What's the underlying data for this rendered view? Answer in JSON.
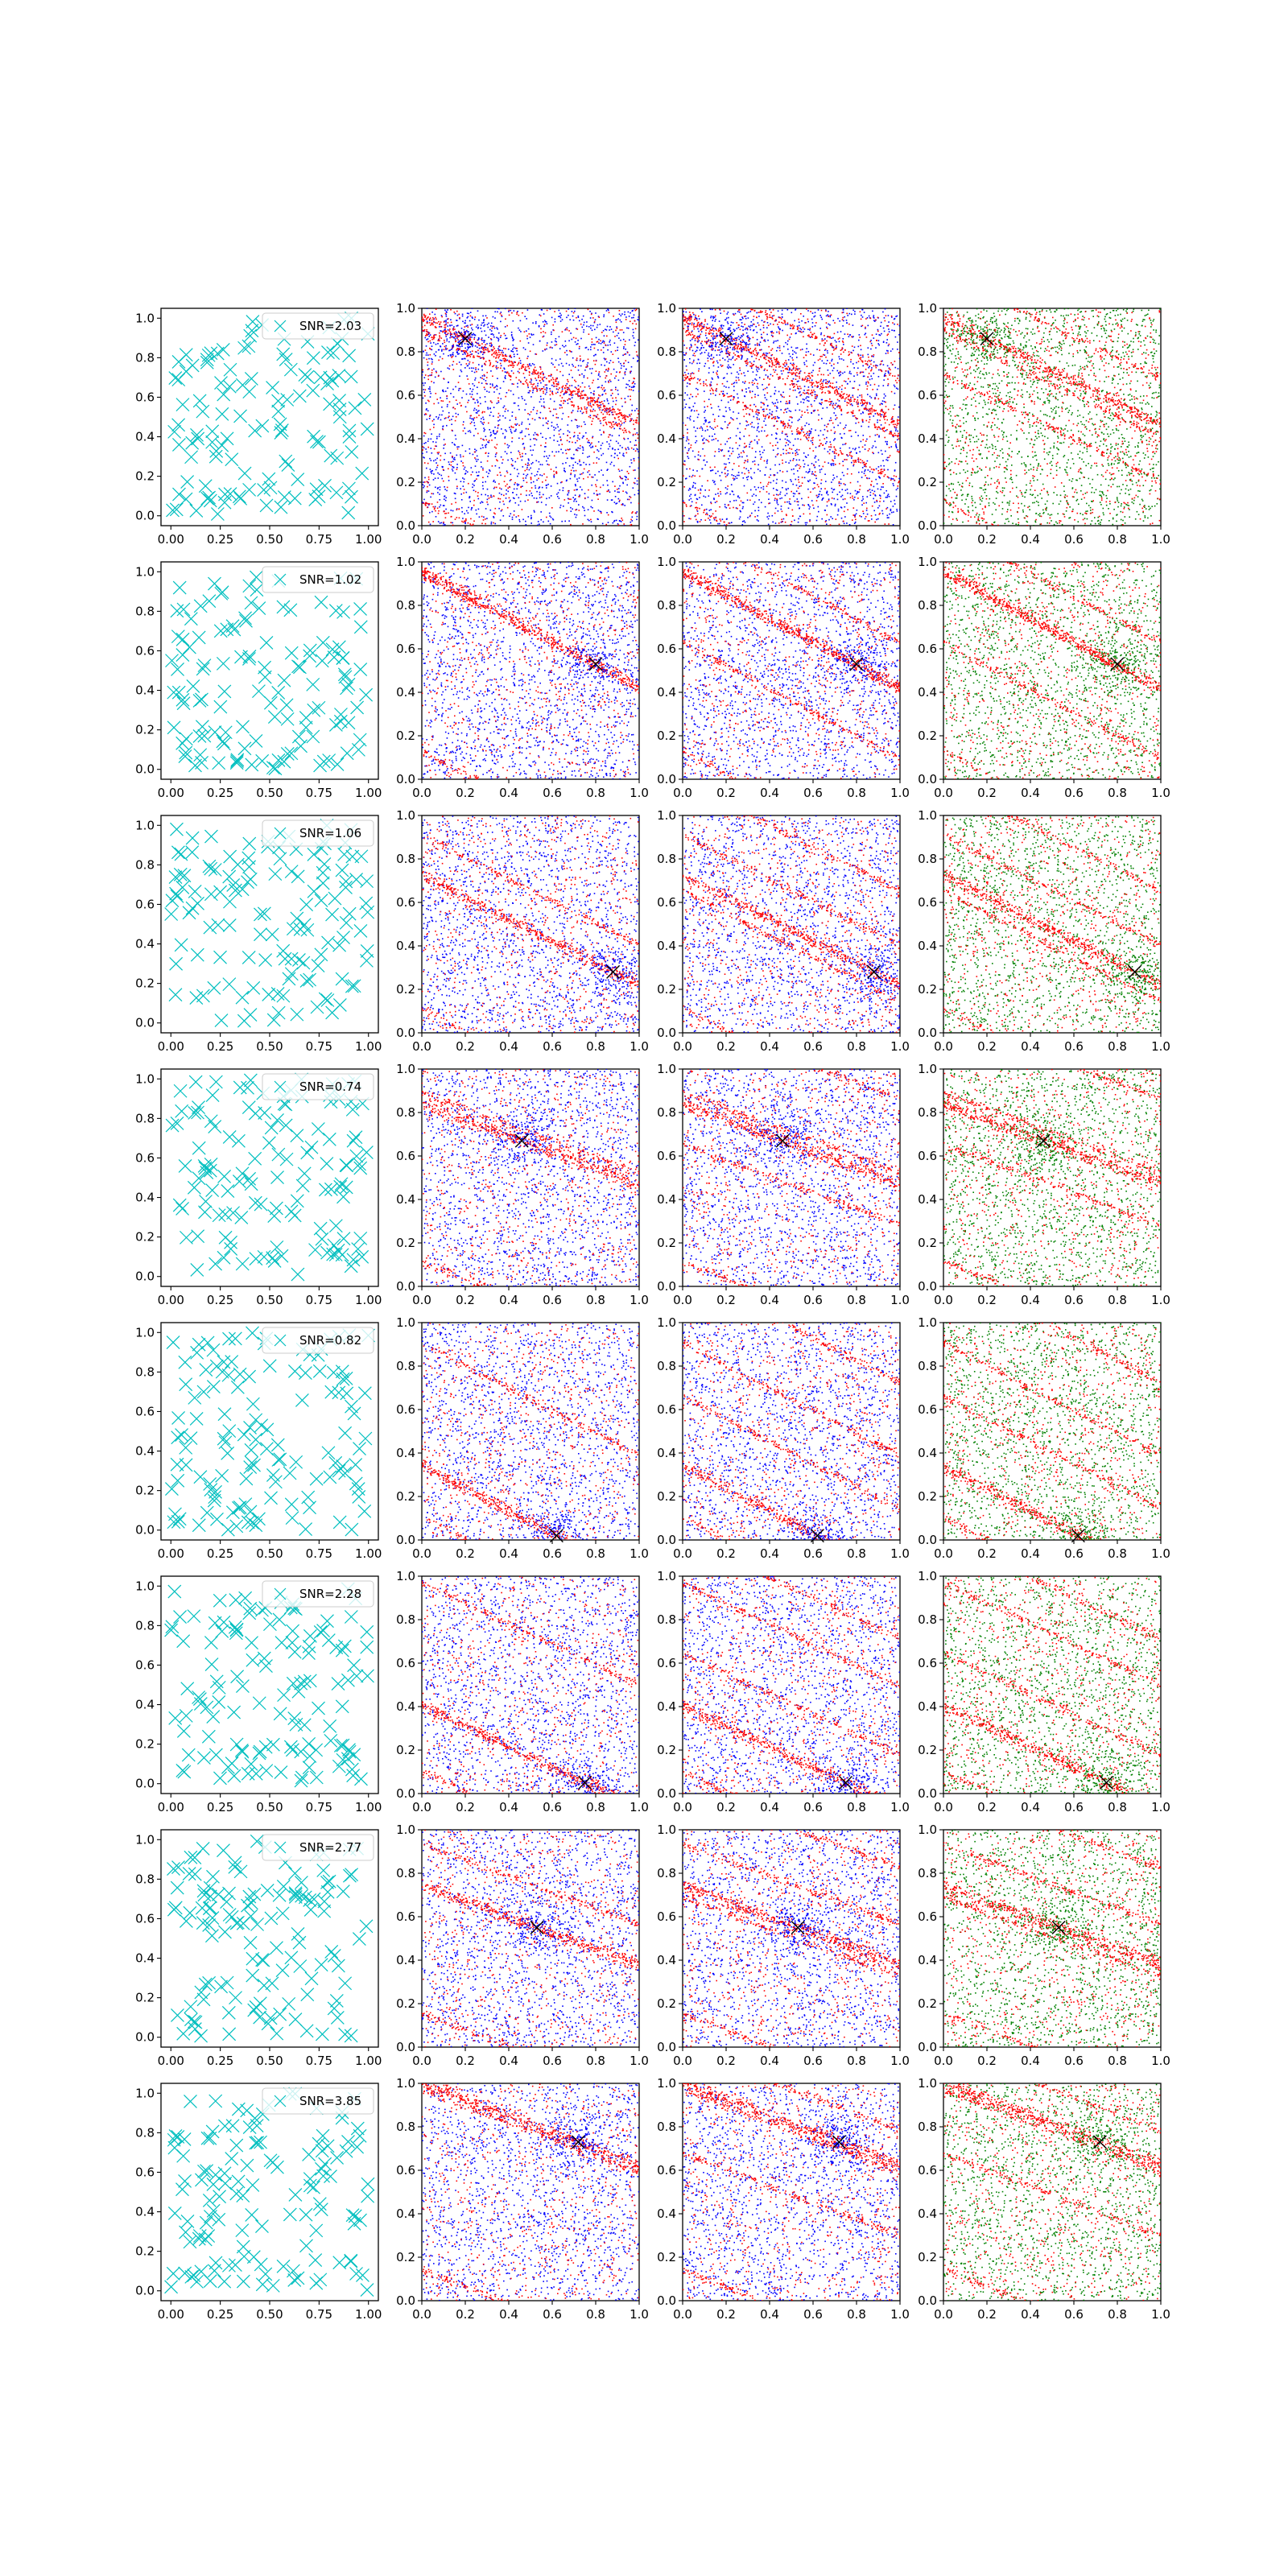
{
  "colors": {
    "cross": "#00bfbf",
    "blue": "#0000ff",
    "red": "#ff0000",
    "green": "#008000",
    "target": "#000000",
    "axes": "#000000",
    "legend_border": "#cccccc"
  },
  "chart_data": [
    {
      "panel": "row1-col1",
      "type": "scatter",
      "marker": "x",
      "legend": "SNR=2.03",
      "legend_placement": "upper right",
      "n_points": 130,
      "xlim": [
        -0.05,
        1.05
      ],
      "ylim": [
        -0.05,
        1.05
      ],
      "xticks": [
        "0.00",
        "0.25",
        "0.50",
        "0.75",
        "1.00"
      ],
      "yticks": [
        "0.0",
        "0.2",
        "0.4",
        "0.6",
        "0.8",
        "1.0"
      ]
    },
    {
      "panel": "row1-cols2-4",
      "type": "scatter",
      "xlim": [
        0,
        1
      ],
      "ylim": [
        0,
        1
      ],
      "xticks": [
        "0.0",
        "0.2",
        "0.4",
        "0.6",
        "0.8",
        "1.0"
      ],
      "yticks": [
        "0.0",
        "0.2",
        "0.4",
        "0.6",
        "0.8",
        "1.0"
      ],
      "target": [
        0.2,
        0.86
      ],
      "subpanel_colors": [
        [
          "red",
          "blue"
        ],
        [
          "red",
          "blue"
        ],
        [
          "red",
          "green"
        ]
      ]
    },
    {
      "panel": "row2-col1",
      "type": "scatter",
      "marker": "x",
      "legend": "SNR=1.02",
      "legend_placement": "upper right",
      "n_points": 130,
      "xlim": [
        -0.05,
        1.05
      ],
      "ylim": [
        -0.05,
        1.05
      ],
      "xticks": [
        "0.00",
        "0.25",
        "0.50",
        "0.75",
        "1.00"
      ],
      "yticks": [
        "0.0",
        "0.2",
        "0.4",
        "0.6",
        "0.8",
        "1.0"
      ]
    },
    {
      "panel": "row2-cols2-4",
      "type": "scatter",
      "xlim": [
        0,
        1
      ],
      "ylim": [
        0,
        1
      ],
      "xticks": [
        "0.0",
        "0.2",
        "0.4",
        "0.6",
        "0.8",
        "1.0"
      ],
      "yticks": [
        "0.0",
        "0.2",
        "0.4",
        "0.6",
        "0.8",
        "1.0"
      ],
      "target": [
        0.8,
        0.53
      ],
      "subpanel_colors": [
        [
          "red",
          "blue"
        ],
        [
          "red",
          "blue"
        ],
        [
          "red",
          "green"
        ]
      ]
    },
    {
      "panel": "row3-col1",
      "type": "scatter",
      "marker": "x",
      "legend": "SNR=1.06",
      "legend_placement": "upper right",
      "n_points": 130,
      "xlim": [
        -0.05,
        1.05
      ],
      "ylim": [
        -0.05,
        1.05
      ],
      "xticks": [
        "0.00",
        "0.25",
        "0.50",
        "0.75",
        "1.00"
      ],
      "yticks": [
        "0.0",
        "0.2",
        "0.4",
        "0.6",
        "0.8",
        "1.0"
      ]
    },
    {
      "panel": "row3-cols2-4",
      "type": "scatter",
      "xlim": [
        0,
        1
      ],
      "ylim": [
        0,
        1
      ],
      "xticks": [
        "0.0",
        "0.2",
        "0.4",
        "0.6",
        "0.8",
        "1.0"
      ],
      "yticks": [
        "0.0",
        "0.2",
        "0.4",
        "0.6",
        "0.8",
        "1.0"
      ],
      "target": [
        0.88,
        0.28
      ],
      "subpanel_colors": [
        [
          "red",
          "blue"
        ],
        [
          "red",
          "blue"
        ],
        [
          "red",
          "green"
        ]
      ]
    },
    {
      "panel": "row4-col1",
      "type": "scatter",
      "marker": "x",
      "legend": "SNR=0.74",
      "legend_placement": "upper right",
      "n_points": 130,
      "xlim": [
        -0.05,
        1.05
      ],
      "ylim": [
        -0.05,
        1.05
      ],
      "xticks": [
        "0.00",
        "0.25",
        "0.50",
        "0.75",
        "1.00"
      ],
      "yticks": [
        "0.0",
        "0.2",
        "0.4",
        "0.6",
        "0.8",
        "1.0"
      ]
    },
    {
      "panel": "row4-cols2-4",
      "type": "scatter",
      "xlim": [
        0,
        1
      ],
      "ylim": [
        0,
        1
      ],
      "xticks": [
        "0.0",
        "0.2",
        "0.4",
        "0.6",
        "0.8",
        "1.0"
      ],
      "yticks": [
        "0.0",
        "0.2",
        "0.4",
        "0.6",
        "0.8",
        "1.0"
      ],
      "target": [
        0.46,
        0.67
      ],
      "subpanel_colors": [
        [
          "red",
          "blue"
        ],
        [
          "red",
          "blue"
        ],
        [
          "red",
          "green"
        ]
      ]
    },
    {
      "panel": "row5-col1",
      "type": "scatter",
      "marker": "x",
      "legend": "SNR=0.82",
      "legend_placement": "upper right",
      "n_points": 130,
      "xlim": [
        -0.05,
        1.05
      ],
      "ylim": [
        -0.05,
        1.05
      ],
      "xticks": [
        "0.00",
        "0.25",
        "0.50",
        "0.75",
        "1.00"
      ],
      "yticks": [
        "0.0",
        "0.2",
        "0.4",
        "0.6",
        "0.8",
        "1.0"
      ]
    },
    {
      "panel": "row5-cols2-4",
      "type": "scatter",
      "xlim": [
        0,
        1
      ],
      "ylim": [
        0,
        1
      ],
      "xticks": [
        "0.0",
        "0.2",
        "0.4",
        "0.6",
        "0.8",
        "1.0"
      ],
      "yticks": [
        "0.0",
        "0.2",
        "0.4",
        "0.6",
        "0.8",
        "1.0"
      ],
      "target": [
        0.62,
        0.02
      ],
      "subpanel_colors": [
        [
          "red",
          "blue"
        ],
        [
          "red",
          "blue"
        ],
        [
          "red",
          "green"
        ]
      ]
    },
    {
      "panel": "row6-col1",
      "type": "scatter",
      "marker": "x",
      "legend": "SNR=2.28",
      "legend_placement": "upper right",
      "n_points": 130,
      "xlim": [
        -0.05,
        1.05
      ],
      "ylim": [
        -0.05,
        1.05
      ],
      "xticks": [
        "0.00",
        "0.25",
        "0.50",
        "0.75",
        "1.00"
      ],
      "yticks": [
        "0.0",
        "0.2",
        "0.4",
        "0.6",
        "0.8",
        "1.0"
      ]
    },
    {
      "panel": "row6-cols2-4",
      "type": "scatter",
      "xlim": [
        0,
        1
      ],
      "ylim": [
        0,
        1
      ],
      "xticks": [
        "0.0",
        "0.2",
        "0.4",
        "0.6",
        "0.8",
        "1.0"
      ],
      "yticks": [
        "0.0",
        "0.2",
        "0.4",
        "0.6",
        "0.8",
        "1.0"
      ],
      "target": [
        0.75,
        0.05
      ],
      "subpanel_colors": [
        [
          "red",
          "blue"
        ],
        [
          "red",
          "blue"
        ],
        [
          "red",
          "green"
        ]
      ]
    },
    {
      "panel": "row7-col1",
      "type": "scatter",
      "marker": "x",
      "legend": "SNR=2.77",
      "legend_placement": "upper right",
      "n_points": 130,
      "xlim": [
        -0.05,
        1.05
      ],
      "ylim": [
        -0.05,
        1.05
      ],
      "xticks": [
        "0.00",
        "0.25",
        "0.50",
        "0.75",
        "1.00"
      ],
      "yticks": [
        "0.0",
        "0.2",
        "0.4",
        "0.6",
        "0.8",
        "1.0"
      ]
    },
    {
      "panel": "row7-cols2-4",
      "type": "scatter",
      "xlim": [
        0,
        1
      ],
      "ylim": [
        0,
        1
      ],
      "xticks": [
        "0.0",
        "0.2",
        "0.4",
        "0.6",
        "0.8",
        "1.0"
      ],
      "yticks": [
        "0.0",
        "0.2",
        "0.4",
        "0.6",
        "0.8",
        "1.0"
      ],
      "target": [
        0.53,
        0.55
      ],
      "subpanel_colors": [
        [
          "red",
          "blue"
        ],
        [
          "red",
          "blue"
        ],
        [
          "red",
          "green"
        ]
      ]
    },
    {
      "panel": "row8-col1",
      "type": "scatter",
      "marker": "x",
      "legend": "SNR=3.85",
      "legend_placement": "upper right",
      "n_points": 130,
      "xlim": [
        -0.05,
        1.05
      ],
      "ylim": [
        -0.05,
        1.05
      ],
      "xticks": [
        "0.00",
        "0.25",
        "0.50",
        "0.75",
        "1.00"
      ],
      "yticks": [
        "0.0",
        "0.2",
        "0.4",
        "0.6",
        "0.8",
        "1.0"
      ]
    },
    {
      "panel": "row8-cols2-4",
      "type": "scatter",
      "xlim": [
        0,
        1
      ],
      "ylim": [
        0,
        1
      ],
      "xticks": [
        "0.0",
        "0.2",
        "0.4",
        "0.6",
        "0.8",
        "1.0"
      ],
      "yticks": [
        "0.0",
        "0.2",
        "0.4",
        "0.6",
        "0.8",
        "1.0"
      ],
      "target": [
        0.72,
        0.73
      ],
      "subpanel_colors": [
        [
          "red",
          "blue"
        ],
        [
          "red",
          "blue"
        ],
        [
          "red",
          "green"
        ]
      ]
    }
  ]
}
